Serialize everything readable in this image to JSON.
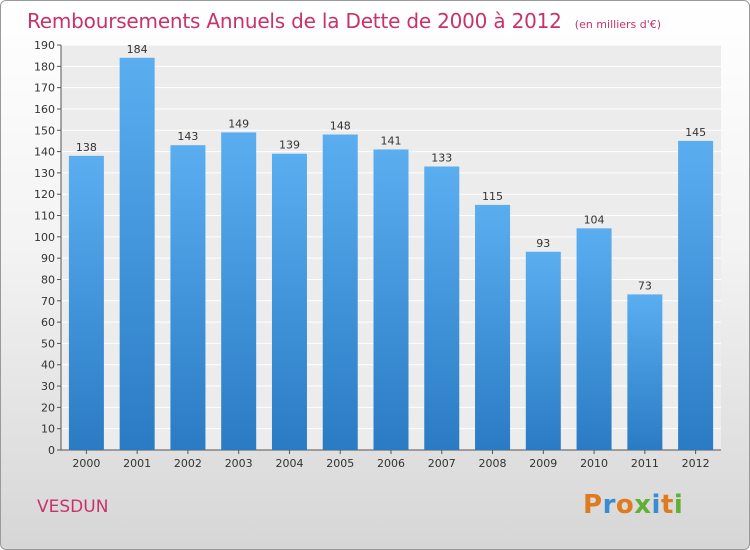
{
  "header": {
    "title": "Remboursements Annuels de la Dette de 2000 à 2012",
    "unit": "(en milliers d'€)"
  },
  "footer": {
    "commune": "VESDUN",
    "brand": "Proxiti"
  },
  "colors": {
    "title": "#c8326b",
    "bar_light": "#5aaef0",
    "bar_dark": "#2a7bc4",
    "brand_letters": [
      "#e07a1f",
      "#3b8bd0",
      "#e07a1f",
      "#62b033",
      "#3b8bd0",
      "#e07a1f",
      "#62b033"
    ]
  },
  "chart_data": {
    "type": "bar",
    "categories": [
      "2000",
      "2001",
      "2002",
      "2003",
      "2004",
      "2005",
      "2006",
      "2007",
      "2008",
      "2009",
      "2010",
      "2011",
      "2012"
    ],
    "values": [
      138,
      184,
      143,
      149,
      139,
      148,
      141,
      133,
      115,
      93,
      104,
      73,
      145
    ],
    "title": "Remboursements Annuels de la Dette de 2000 à 2012",
    "unit": "(en milliers d'€)",
    "xlabel": "",
    "ylabel": "",
    "ylim": [
      0,
      190
    ],
    "ytick_step": 10,
    "grid": true,
    "legend": "none"
  }
}
